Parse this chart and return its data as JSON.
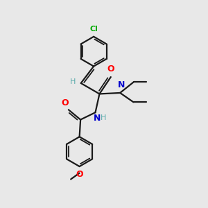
{
  "background_color": "#e8e8e8",
  "bond_color": "#1a1a1a",
  "atom_colors": {
    "Cl": "#00aa00",
    "O": "#ff0000",
    "N": "#0000cc",
    "H": "#5aabab",
    "C": "#1a1a1a"
  },
  "figsize": [
    3.0,
    3.0
  ],
  "dpi": 100,
  "ring_r": 0.72,
  "xlim": [
    0,
    10
  ],
  "ylim": [
    0,
    10
  ]
}
